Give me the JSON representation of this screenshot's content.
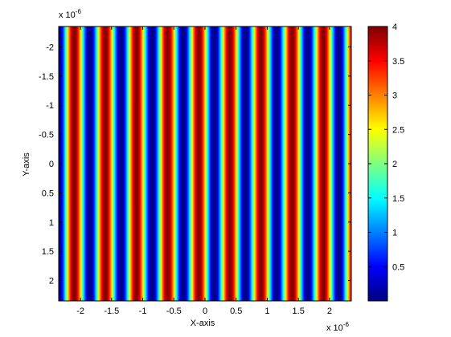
{
  "chart_data": {
    "type": "heatmap",
    "title": "",
    "xlabel": "X-axis",
    "ylabel": "Y-axis",
    "x_exponent_label": "x 10",
    "x_exponent_power": "-6",
    "y_exponent_label": "x 10",
    "y_exponent_power": "-6",
    "xlim": [
      -2.35,
      2.35
    ],
    "ylim": [
      -2.35,
      2.35
    ],
    "y_direction": "reverse",
    "x_ticks": [
      -2,
      -1.5,
      -1,
      -0.5,
      0,
      0.5,
      1,
      1.5,
      2
    ],
    "x_tick_labels": [
      "-2",
      "-1.5",
      "-1",
      "-0.5",
      "0",
      "0.5",
      "1",
      "1.5",
      "2"
    ],
    "y_ticks": [
      -2,
      -1.5,
      -1,
      -0.5,
      0,
      0.5,
      1,
      1.5,
      2
    ],
    "y_tick_labels": [
      "-2",
      "-1.5",
      "-1",
      "-0.5",
      "0",
      "0.5",
      "1",
      "1.5",
      "2"
    ],
    "colormap": "jet",
    "field": {
      "description": "intensity varies only along x; stripes constant along y",
      "formula": "4*cos^2(pi*x/period + phase)",
      "amplitude_max": 4,
      "period": 0.5,
      "maxima_x": [
        -2.1,
        -1.6,
        -1.1,
        -0.6,
        -0.1,
        0.4,
        0.9,
        1.4,
        1.9
      ],
      "minima_x": [
        -2.35,
        -1.85,
        -1.35,
        -0.85,
        -0.35,
        0.15,
        0.65,
        1.15,
        1.65,
        2.15
      ]
    },
    "colorbar": {
      "min": 0,
      "max": 4,
      "ticks": [
        0.5,
        1,
        1.5,
        2,
        2.5,
        3,
        3.5,
        4
      ],
      "tick_labels": [
        "0.5",
        "1",
        "1.5",
        "2",
        "2.5",
        "3",
        "3.5",
        "4"
      ]
    },
    "grid": false,
    "legend": "none"
  }
}
